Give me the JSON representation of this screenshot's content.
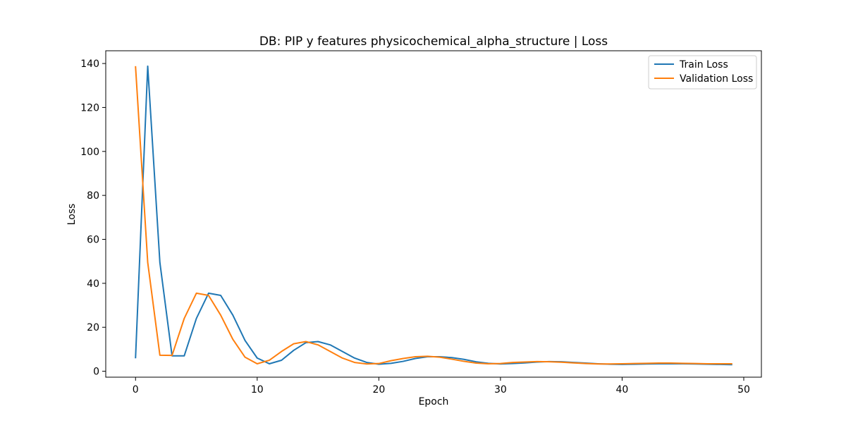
{
  "chart_data": {
    "type": "line",
    "title": "DB: PIP y features physicochemical_alpha_structure | Loss",
    "xlabel": "Epoch",
    "ylabel": "Loss",
    "xlim": [
      -2.45,
      51.45
    ],
    "ylim": [
      -2.7,
      145.8
    ],
    "xticks": [
      0,
      10,
      20,
      30,
      40,
      50
    ],
    "yticks": [
      0,
      20,
      40,
      60,
      80,
      100,
      120,
      140
    ],
    "grid": false,
    "legend_position": "top-right",
    "colors": {
      "train": "#1f77b4",
      "validation": "#ff7f0e"
    },
    "x": [
      0,
      1,
      2,
      3,
      4,
      5,
      6,
      7,
      8,
      9,
      10,
      11,
      12,
      13,
      14,
      15,
      16,
      17,
      18,
      19,
      20,
      21,
      22,
      23,
      24,
      25,
      26,
      27,
      28,
      29,
      30,
      31,
      32,
      33,
      34,
      35,
      36,
      37,
      38,
      39,
      40,
      41,
      42,
      43,
      44,
      45,
      46,
      47,
      48,
      49
    ],
    "series": [
      {
        "name": "Train Loss",
        "color": "#1f77b4",
        "values": [
          6.2,
          138.8,
          49.5,
          7.0,
          7.0,
          24.0,
          35.5,
          34.5,
          25.5,
          14.0,
          6.0,
          3.4,
          5.0,
          9.5,
          13.0,
          13.5,
          12.0,
          9.0,
          6.0,
          4.0,
          3.2,
          3.6,
          4.5,
          5.8,
          6.6,
          6.6,
          6.2,
          5.4,
          4.3,
          3.6,
          3.3,
          3.5,
          3.8,
          4.2,
          4.4,
          4.3,
          4.0,
          3.7,
          3.4,
          3.2,
          3.1,
          3.2,
          3.3,
          3.4,
          3.4,
          3.4,
          3.3,
          3.2,
          3.1,
          3.0
        ]
      },
      {
        "name": "Validation Loss",
        "color": "#ff7f0e",
        "values": [
          138.5,
          49.5,
          7.3,
          7.2,
          24.0,
          35.5,
          34.5,
          25.5,
          14.5,
          6.4,
          3.4,
          5.0,
          9.0,
          12.5,
          13.5,
          12.0,
          9.0,
          6.0,
          4.0,
          3.3,
          3.5,
          4.8,
          5.8,
          6.6,
          6.8,
          6.4,
          5.5,
          4.5,
          3.7,
          3.4,
          3.5,
          4.0,
          4.2,
          4.4,
          4.3,
          4.1,
          3.8,
          3.5,
          3.3,
          3.3,
          3.4,
          3.5,
          3.6,
          3.7,
          3.7,
          3.6,
          3.5,
          3.4,
          3.4,
          3.4
        ]
      }
    ]
  }
}
